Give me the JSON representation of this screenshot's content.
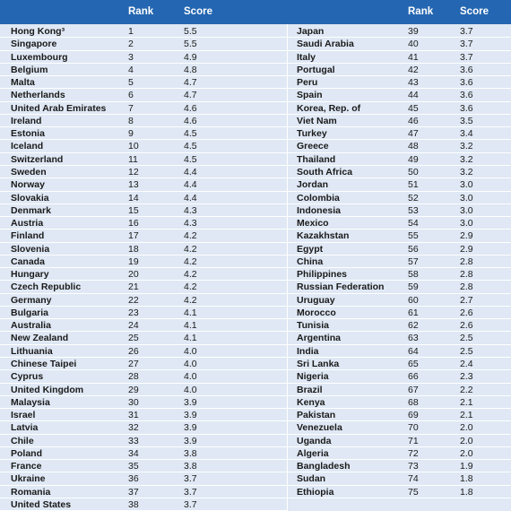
{
  "header": {
    "left": [
      "Rank",
      "Score"
    ],
    "right": [
      "Rank",
      "Score"
    ]
  },
  "table": {
    "left": [
      [
        "Hong Kong³",
        1,
        "5.5"
      ],
      [
        "Singapore",
        2,
        "5.5"
      ],
      [
        "Luxembourg",
        3,
        "4.9"
      ],
      [
        "Belgium",
        4,
        "4.8"
      ],
      [
        "Malta",
        5,
        "4.7"
      ],
      [
        "Netherlands",
        6,
        "4.7"
      ],
      [
        "United Arab Emirates",
        7,
        "4.6"
      ],
      [
        "Ireland",
        8,
        "4.6"
      ],
      [
        "Estonia",
        9,
        "4.5"
      ],
      [
        "Iceland",
        10,
        "4.5"
      ],
      [
        "Switzerland",
        11,
        "4.5"
      ],
      [
        "Sweden",
        12,
        "4.4"
      ],
      [
        "Norway",
        13,
        "4.4"
      ],
      [
        "Slovakia",
        14,
        "4.4"
      ],
      [
        "Denmark",
        15,
        "4.3"
      ],
      [
        "Austria",
        16,
        "4.3"
      ],
      [
        "Finland",
        17,
        "4.2"
      ],
      [
        "Slovenia",
        18,
        "4.2"
      ],
      [
        "Canada",
        19,
        "4.2"
      ],
      [
        "Hungary",
        20,
        "4.2"
      ],
      [
        "Czech Republic",
        21,
        "4.2"
      ],
      [
        "Germany",
        22,
        "4.2"
      ],
      [
        "Bulgaria",
        23,
        "4.1"
      ],
      [
        "Australia",
        24,
        "4.1"
      ],
      [
        "New Zealand",
        25,
        "4.1"
      ],
      [
        "Lithuania",
        26,
        "4.0"
      ],
      [
        "Chinese Taipei",
        27,
        "4.0"
      ],
      [
        "Cyprus",
        28,
        "4.0"
      ],
      [
        "United Kingdom",
        29,
        "4.0"
      ],
      [
        "Malaysia",
        30,
        "3.9"
      ],
      [
        "Israel",
        31,
        "3.9"
      ],
      [
        "Latvia",
        32,
        "3.9"
      ],
      [
        "Chile",
        33,
        "3.9"
      ],
      [
        "Poland",
        34,
        "3.8"
      ],
      [
        "France",
        35,
        "3.8"
      ],
      [
        "Ukraine",
        36,
        "3.7"
      ],
      [
        "Romania",
        37,
        "3.7"
      ],
      [
        "United States",
        38,
        "3.7"
      ]
    ],
    "right": [
      [
        "Japan",
        39,
        "3.7"
      ],
      [
        "Saudi Arabia",
        40,
        "3.7"
      ],
      [
        "Italy",
        41,
        "3.7"
      ],
      [
        "Portugal",
        42,
        "3.6"
      ],
      [
        "Peru",
        43,
        "3.6"
      ],
      [
        "Spain",
        44,
        "3.6"
      ],
      [
        "Korea, Rep. of",
        45,
        "3.6"
      ],
      [
        "Viet Nam",
        46,
        "3.5"
      ],
      [
        "Turkey",
        47,
        "3.4"
      ],
      [
        "Greece",
        48,
        "3.2"
      ],
      [
        "Thailand",
        49,
        "3.2"
      ],
      [
        "South Africa",
        50,
        "3.2"
      ],
      [
        "Jordan",
        51,
        "3.0"
      ],
      [
        "Colombia",
        52,
        "3.0"
      ],
      [
        "Indonesia",
        53,
        "3.0"
      ],
      [
        "Mexico",
        54,
        "3.0"
      ],
      [
        "Kazakhstan",
        55,
        "2.9"
      ],
      [
        "Egypt",
        56,
        "2.9"
      ],
      [
        "China",
        57,
        "2.8"
      ],
      [
        "Philippines",
        58,
        "2.8"
      ],
      [
        "Russian Federation",
        59,
        "2.8"
      ],
      [
        "Uruguay",
        60,
        "2.7"
      ],
      [
        "Morocco",
        61,
        "2.6"
      ],
      [
        "Tunisia",
        62,
        "2.6"
      ],
      [
        "Argentina",
        63,
        "2.5"
      ],
      [
        "India",
        64,
        "2.5"
      ],
      [
        "Sri Lanka",
        65,
        "2.4"
      ],
      [
        "Nigeria",
        66,
        "2.3"
      ],
      [
        "Brazil",
        67,
        "2.2"
      ],
      [
        "Kenya",
        68,
        "2.1"
      ],
      [
        "Pakistan",
        69,
        "2.1"
      ],
      [
        "Venezuela",
        70,
        "2.0"
      ],
      [
        "Uganda",
        71,
        "2.0"
      ],
      [
        "Algeria",
        72,
        "2.0"
      ],
      [
        "Bangladesh",
        73,
        "1.9"
      ],
      [
        "Sudan",
        74,
        "1.8"
      ],
      [
        "Ethiopia",
        75,
        "1.8"
      ]
    ]
  }
}
